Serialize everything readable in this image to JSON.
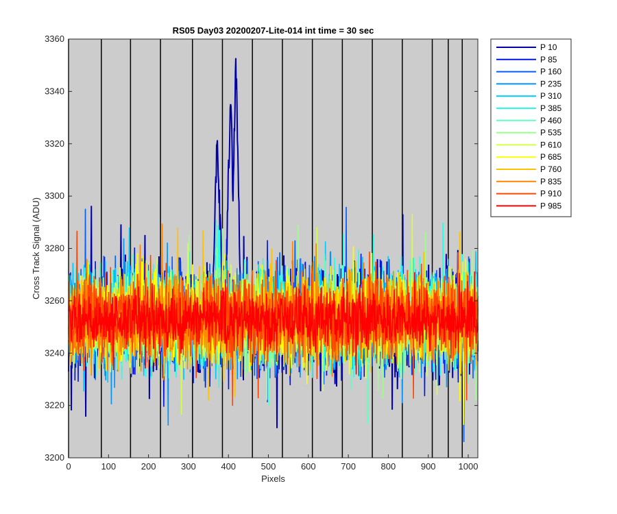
{
  "chart_data": {
    "type": "line",
    "title": "RS05 Day03 20200207-Lite-014 int time = 30 sec",
    "xlabel": "Pixels",
    "ylabel": "Cross Track Signal (ADU)",
    "xlim": [
      0,
      1024
    ],
    "ylim": [
      3200,
      3360
    ],
    "x_ticks": [
      "0",
      "100",
      "200",
      "300",
      "400",
      "500",
      "600",
      "700",
      "800",
      "900",
      "1000"
    ],
    "y_ticks": [
      "3200",
      "3220",
      "3240",
      "3260",
      "3280",
      "3300",
      "3320",
      "3340",
      "3360"
    ],
    "vertical_lines_x": [
      0,
      82,
      155,
      230,
      310,
      385,
      460,
      535,
      610,
      685,
      760,
      835,
      910,
      950,
      985
    ],
    "plot_background": "#cccccc",
    "legend_position": "outside-right",
    "series": [
      {
        "name": "P 10",
        "color": "#0000a6",
        "mean": 3252,
        "spread": 18,
        "peaks": [
          {
            "x": 372,
            "y": 3325
          },
          {
            "x": 405,
            "y": 3340
          },
          {
            "x": 418,
            "y": 3353
          }
        ]
      },
      {
        "name": "P 85",
        "color": "#0014e6",
        "mean": 3253,
        "spread": 17
      },
      {
        "name": "P 160",
        "color": "#005cff",
        "mean": 3253,
        "spread": 17
      },
      {
        "name": "P 235",
        "color": "#0094ff",
        "mean": 3253,
        "spread": 16
      },
      {
        "name": "P 310",
        "color": "#00c8ff",
        "mean": 3253,
        "spread": 16
      },
      {
        "name": "P 385",
        "color": "#25ffe5",
        "mean": 3253,
        "spread": 16
      },
      {
        "name": "P 460",
        "color": "#60ffc0",
        "mean": 3253,
        "spread": 15
      },
      {
        "name": "P 535",
        "color": "#9cff8a",
        "mean": 3253,
        "spread": 15
      },
      {
        "name": "P 610",
        "color": "#d5ff45",
        "mean": 3253,
        "spread": 15
      },
      {
        "name": "P 685",
        "color": "#ffff00",
        "mean": 3253,
        "spread": 15
      },
      {
        "name": "P 760",
        "color": "#ffc200",
        "mean": 3253,
        "spread": 14
      },
      {
        "name": "P 835",
        "color": "#ff8500",
        "mean": 3253,
        "spread": 14
      },
      {
        "name": "P 910",
        "color": "#ff4600",
        "mean": 3253,
        "spread": 13
      },
      {
        "name": "P 985",
        "color": "#ff0000",
        "mean": 3253,
        "spread": 9
      }
    ]
  }
}
